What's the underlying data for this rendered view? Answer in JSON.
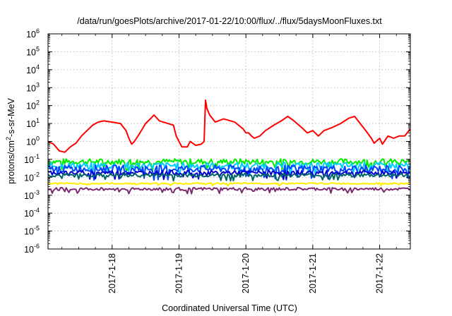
{
  "chart_data": {
    "type": "line",
    "title": "/data/run/goesPlots/archive/2017-01-22/10:00/flux/../flux/5daysMoonFluxes.txt",
    "xlabel": "Coordinated Universal Time (UTC)",
    "ylabel": {
      "prefix": "protons/cm",
      "sup": "2",
      "suffix": "-s-sr-MeV"
    },
    "x_range": [
      "2017-01-17T01:00",
      "2017-01-22T11:00"
    ],
    "x_ticks": [
      "2017-1-18",
      "2017-1-19",
      "2017-1-20",
      "2017-1-21",
      "2017-1-22"
    ],
    "y_scale": "log",
    "y_range": [
      1e-06,
      1000000.0
    ],
    "y_ticks": [
      {
        "base": "10",
        "exp": "-6"
      },
      {
        "base": "10",
        "exp": "-5"
      },
      {
        "base": "10",
        "exp": "-4"
      },
      {
        "base": "10",
        "exp": "-3"
      },
      {
        "base": "10",
        "exp": "-2"
      },
      {
        "base": "10",
        "exp": "-1"
      },
      {
        "base": "10",
        "exp": "0"
      },
      {
        "base": "10",
        "exp": "1"
      },
      {
        "base": "10",
        "exp": "2"
      },
      {
        "base": "10",
        "exp": "3"
      },
      {
        "base": "10",
        "exp": "4"
      },
      {
        "base": "10",
        "exp": "5"
      },
      {
        "base": "10",
        "exp": "6"
      }
    ],
    "grid": true,
    "series": [
      {
        "color": "#ff0000",
        "points": [
          [
            "2017-01-17T01:00",
            1.0
          ],
          [
            "2017-01-17T03:00",
            0.7
          ],
          [
            "2017-01-17T05:00",
            0.3
          ],
          [
            "2017-01-17T07:00",
            0.25
          ],
          [
            "2017-01-17T09:00",
            0.5
          ],
          [
            "2017-01-17T11:00",
            0.8
          ],
          [
            "2017-01-17T13:00",
            2
          ],
          [
            "2017-01-17T15:00",
            4
          ],
          [
            "2017-01-17T17:00",
            8
          ],
          [
            "2017-01-17T19:00",
            12
          ],
          [
            "2017-01-17T21:00",
            14
          ],
          [
            "2017-01-18T00:00",
            12
          ],
          [
            "2017-01-18T03:00",
            10
          ],
          [
            "2017-01-18T05:00",
            4
          ],
          [
            "2017-01-18T06:00",
            1.5
          ],
          [
            "2017-01-18T07:00",
            0.7
          ],
          [
            "2017-01-18T08:00",
            1
          ],
          [
            "2017-01-18T10:00",
            3
          ],
          [
            "2017-01-18T12:00",
            10
          ],
          [
            "2017-01-18T14:00",
            20
          ],
          [
            "2017-01-18T15:00",
            30
          ],
          [
            "2017-01-18T17:00",
            14
          ],
          [
            "2017-01-18T20:00",
            10
          ],
          [
            "2017-01-18T22:00",
            8
          ],
          [
            "2017-01-18T23:00",
            2
          ],
          [
            "2017-01-19T01:00",
            0.5
          ],
          [
            "2017-01-19T03:00",
            0.5
          ],
          [
            "2017-01-19T04:00",
            1
          ],
          [
            "2017-01-19T06:00",
            0.6
          ],
          [
            "2017-01-19T08:00",
            0.7
          ],
          [
            "2017-01-19T09:00",
            1.0
          ],
          [
            "2017-01-19T09:30",
            200
          ],
          [
            "2017-01-19T10:00",
            70
          ],
          [
            "2017-01-19T11:00",
            30
          ],
          [
            "2017-01-19T13:00",
            12
          ],
          [
            "2017-01-19T16:00",
            18
          ],
          [
            "2017-01-19T20:00",
            12
          ],
          [
            "2017-01-19T23:00",
            5
          ],
          [
            "2017-01-20T00:00",
            3
          ],
          [
            "2017-01-20T01:00",
            3
          ],
          [
            "2017-01-20T02:00",
            2
          ],
          [
            "2017-01-20T03:00",
            1.5
          ],
          [
            "2017-01-20T05:00",
            2
          ],
          [
            "2017-01-20T07:00",
            4
          ],
          [
            "2017-01-20T10:00",
            8
          ],
          [
            "2017-01-20T13:00",
            15
          ],
          [
            "2017-01-20T15:00",
            25
          ],
          [
            "2017-01-20T17:00",
            15
          ],
          [
            "2017-01-20T20:00",
            6
          ],
          [
            "2017-01-20T22:00",
            3
          ],
          [
            "2017-01-21T00:00",
            4
          ],
          [
            "2017-01-21T02:00",
            2
          ],
          [
            "2017-01-21T04:00",
            4
          ],
          [
            "2017-01-21T07:00",
            6
          ],
          [
            "2017-01-21T10:00",
            10
          ],
          [
            "2017-01-21T13:00",
            20
          ],
          [
            "2017-01-21T15:00",
            25
          ],
          [
            "2017-01-21T17:00",
            10
          ],
          [
            "2017-01-21T19:00",
            4
          ],
          [
            "2017-01-21T21:00",
            1.5
          ],
          [
            "2017-01-21T22:00",
            0.8
          ],
          [
            "2017-01-22T00:00",
            1.5
          ],
          [
            "2017-01-22T01:00",
            0.7
          ],
          [
            "2017-01-22T03:00",
            2
          ],
          [
            "2017-01-22T05:00",
            1.5
          ],
          [
            "2017-01-22T07:00",
            2
          ],
          [
            "2017-01-22T09:00",
            2
          ],
          [
            "2017-01-22T11:00",
            5
          ]
        ]
      },
      {
        "color": "#00ee00",
        "level": 0.075,
        "spread": 0.16
      },
      {
        "color": "#00ccff",
        "level": 0.045,
        "spread": 0.18
      },
      {
        "color": "#0044ff",
        "level": 0.03,
        "spread": 0.2
      },
      {
        "color": "#0000cc",
        "level": 0.018,
        "spread": 0.12
      },
      {
        "color": "#006666",
        "level": 0.013,
        "spread": 0.1
      },
      {
        "color": "#ffee00",
        "level": 0.0045,
        "spread": 0.04
      },
      {
        "color": "#7b2a70",
        "level": 0.0022,
        "spread": 0.08
      }
    ]
  }
}
